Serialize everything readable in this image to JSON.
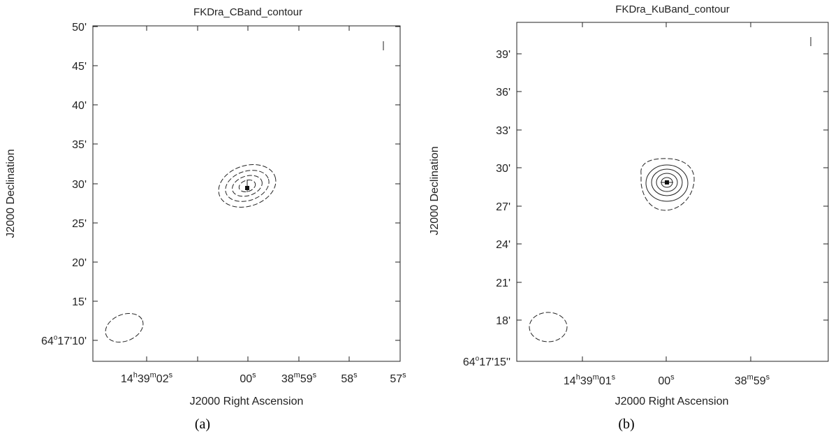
{
  "chart_data": [
    {
      "type": "contour",
      "title": "FKDra_CBand_contour",
      "caption": "(a)",
      "xlabel": "J2000 Right Ascension",
      "ylabel": "J2000 Declination",
      "x_tick_labels": [
        {
          "h": "14",
          "hs": "h",
          "m": "39",
          "ms": "m",
          "s": "02",
          "ss": "s"
        },
        {
          "s": "00",
          "ss": "s"
        },
        {
          "m": "38",
          "ms": "m",
          "s": "59",
          "ss": "s"
        },
        {
          "s": "58",
          "ss": "s"
        },
        {
          "s": "57",
          "ss": "s"
        }
      ],
      "y_tick_labels": [
        "50'",
        "45'",
        "40'",
        "35'",
        "30'",
        "25'",
        "20'",
        "15'"
      ],
      "y_origin_label": {
        "deg": "64",
        "deg_sym": "o",
        "rest": "17'10'"
      },
      "contour_levels": 4,
      "beam": "ellipse lower-left"
    },
    {
      "type": "contour",
      "title": "FKDra_KuBand_contour",
      "caption": "(b)",
      "xlabel": "J2000 Right Ascension",
      "ylabel": "J2000 Declination",
      "x_tick_labels": [
        {
          "h": "14",
          "hs": "h",
          "m": "39",
          "ms": "m",
          "s": "01",
          "ss": "s"
        },
        {
          "s": "00",
          "ss": "s"
        },
        {
          "m": "38",
          "ms": "m",
          "s": "59",
          "ss": "s"
        }
      ],
      "y_tick_labels": [
        "39'",
        "36'",
        "33'",
        "30'",
        "27'",
        "24'",
        "21'",
        "18'"
      ],
      "y_origin_label": {
        "deg": "64",
        "deg_sym": "o",
        "rest": "17'15''"
      },
      "contour_levels": 5,
      "beam": "ellipse lower-left"
    }
  ]
}
